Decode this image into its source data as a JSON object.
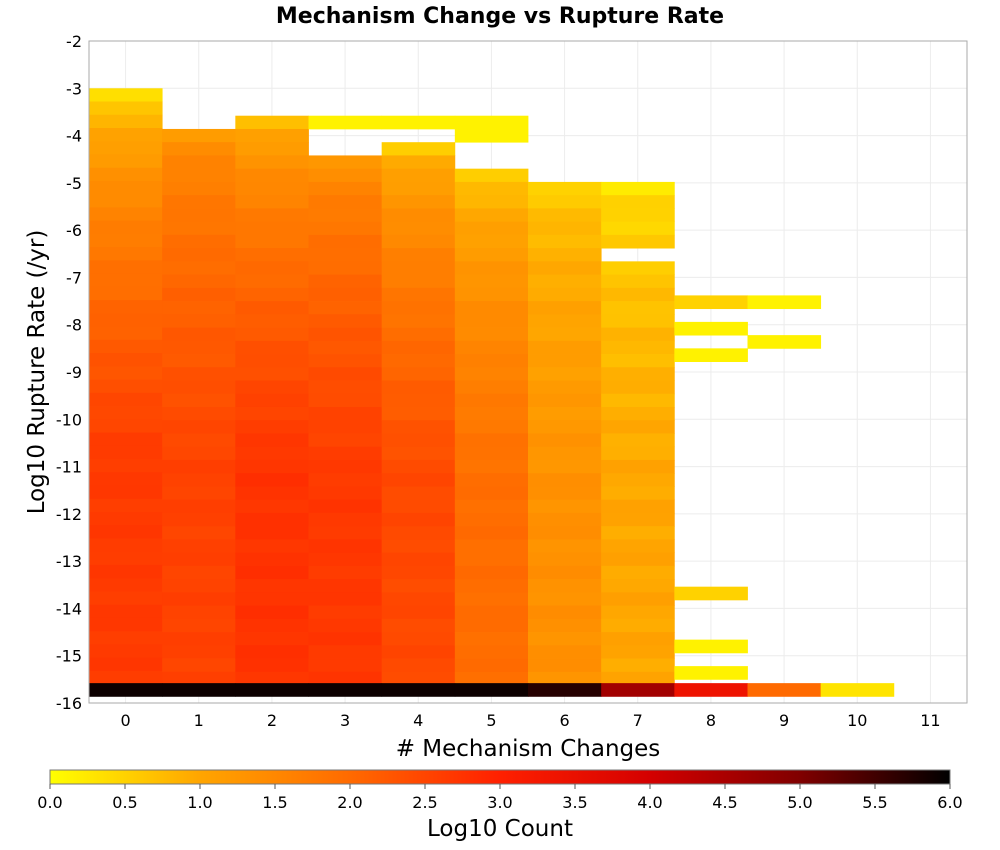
{
  "chart_data": {
    "type": "heatmap",
    "title": "Mechanism Change vs Rupture Rate",
    "xlabel": "# Mechanism Changes",
    "ylabel": "Log10 Rupture Rate (/yr)",
    "xlim": [
      -0.5,
      11.5
    ],
    "ylim": [
      -16,
      -2
    ],
    "bin_height": 0.28,
    "x_ticks": [
      "0",
      "1",
      "2",
      "3",
      "4",
      "5",
      "6",
      "7",
      "8",
      "9",
      "10",
      "11"
    ],
    "y_ticks": [
      "-2",
      "-3",
      "-4",
      "-5",
      "-6",
      "-7",
      "-8",
      "-9",
      "-10",
      "-11",
      "-12",
      "-13",
      "-14",
      "-15",
      "-16"
    ],
    "grid": true,
    "colorbar": {
      "label": "Log10 Count",
      "range": [
        0,
        6
      ],
      "ticks": [
        "0.0",
        "0.5",
        "1.0",
        "1.5",
        "2.0",
        "2.5",
        "3.0",
        "3.5",
        "4.0",
        "4.5",
        "5.0",
        "5.5",
        "6.0"
      ],
      "colors": [
        "#ffff00",
        "#ffa500",
        "#ff6a00",
        "#ff2000",
        "#d40000",
        "#800000",
        "#000000"
      ]
    },
    "columns": [
      {
        "x": 0,
        "top": -3.0,
        "start": 0.3,
        "end": 2.65,
        "jitter": 0.06
      },
      {
        "x": 1,
        "top": -3.86,
        "start": 1.2,
        "end": 2.55,
        "jitter": 0.06
      },
      {
        "x": 2,
        "top": -3.58,
        "start": 0.7,
        "end": 2.75,
        "jitter": 0.06
      },
      {
        "x": 3,
        "top": -4.42,
        "start": 1.2,
        "end": 2.68,
        "jitter": 0.06
      },
      {
        "x": 4,
        "top": -4.14,
        "start": 0.6,
        "end": 2.45,
        "jitter": 0.06
      },
      {
        "x": 5,
        "top": -4.7,
        "start": 0.5,
        "end": 1.95,
        "jitter": 0.06
      },
      {
        "x": 6,
        "top": -4.98,
        "start": 0.5,
        "end": 1.35,
        "jitter": 0.08
      },
      {
        "x": 7,
        "top": -4.98,
        "start": 0.3,
        "end": 1.0,
        "jitter": 0.1
      }
    ],
    "overrides": [
      {
        "x": 3,
        "y": -3.86,
        "value": 0.15
      },
      {
        "x": 4,
        "y": -3.86,
        "value": 0.15
      },
      {
        "x": 5,
        "y": -3.86,
        "value": 0.15
      },
      {
        "x": 5,
        "y": -4.14,
        "value": 0.15
      }
    ],
    "gaps": [
      {
        "x": 7,
        "y_bottom": -6.7,
        "y_top": -6.42
      }
    ],
    "sparse_cells": [
      {
        "x": 8,
        "y": -7.66,
        "value": 0.5
      },
      {
        "x": 9,
        "y": -7.66,
        "value": 0.15
      },
      {
        "x": 8,
        "y": -8.22,
        "value": 0.15
      },
      {
        "x": 9,
        "y": -8.5,
        "value": 0.15
      },
      {
        "x": 8,
        "y": -8.78,
        "value": 0.15
      },
      {
        "x": 8,
        "y": -13.82,
        "value": 0.5
      },
      {
        "x": 8,
        "y": -14.94,
        "value": 0.15
      },
      {
        "x": 8,
        "y": -15.5,
        "value": 0.15
      }
    ],
    "bottom_row": {
      "y": -15.86,
      "values": [
        5.9,
        5.9,
        5.9,
        5.9,
        5.9,
        5.9,
        5.7,
        4.6,
        3.4,
        2.0,
        0.3
      ]
    }
  }
}
